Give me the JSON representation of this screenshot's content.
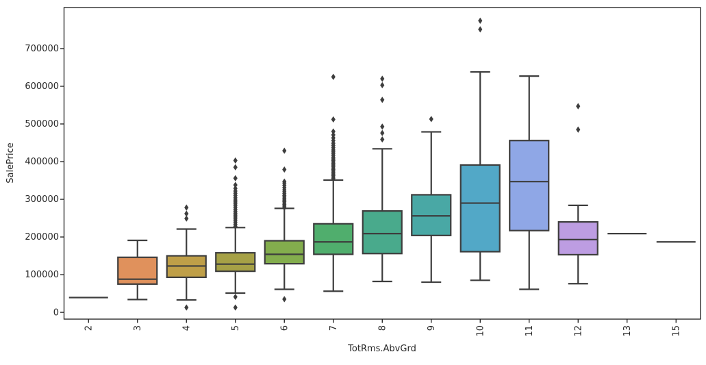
{
  "chart_data": {
    "type": "boxplot",
    "title": "",
    "xlabel": "TotRms.AbvGrd",
    "ylabel": "SalePrice",
    "grid": false,
    "legend": "none",
    "y_ticks": [
      0,
      100000,
      200000,
      300000,
      400000,
      500000,
      600000,
      700000
    ],
    "ylim": [
      -18000,
      809000
    ],
    "x_tick_labels": [
      "2",
      "3",
      "4",
      "5",
      "6",
      "7",
      "8",
      "9",
      "10",
      "11",
      "12",
      "13",
      "15"
    ],
    "colors": {
      "edge": "#3d3d3d",
      "spine": "#1a1a1a",
      "text": "#262626",
      "background": "#ffffff"
    },
    "boxes": [
      {
        "category": "2",
        "single_value": 39300,
        "color": null,
        "fliers": []
      },
      {
        "category": "3",
        "whisker_low": 34000,
        "q1": 75000,
        "median": 88000,
        "q3": 146000,
        "whisker_high": 191000,
        "color": "#e0915c",
        "fliers": []
      },
      {
        "category": "4",
        "whisker_low": 33000,
        "q1": 93000,
        "median": 123000,
        "q3": 150000,
        "whisker_high": 221000,
        "color": "#bf9f48",
        "fliers": [
          12800,
          249000,
          262000,
          278000
        ]
      },
      {
        "category": "5",
        "whisker_low": 51000,
        "q1": 109000,
        "median": 128000,
        "q3": 158000,
        "whisker_high": 225000,
        "color": "#a6a146",
        "fliers": [
          12800,
          41000,
          228000,
          233000,
          238000,
          243000,
          248000,
          253000,
          258000,
          263000,
          268000,
          273000,
          278000,
          283000,
          288000,
          293000,
          298000,
          304000,
          310000,
          316000,
          322000,
          329000,
          338000,
          356000,
          385000,
          403000
        ]
      },
      {
        "category": "6",
        "whisker_low": 61000,
        "q1": 129000,
        "median": 154000,
        "q3": 190000,
        "whisker_high": 276000,
        "color": "#83ad4d",
        "fliers": [
          35000,
          278000,
          282000,
          286000,
          290000,
          294000,
          298000,
          302000,
          306000,
          310000,
          315000,
          320000,
          325000,
          331000,
          337000,
          343000,
          347000,
          379000,
          429000
        ]
      },
      {
        "category": "7",
        "whisker_low": 56000,
        "q1": 154000,
        "median": 187000,
        "q3": 235000,
        "whisker_high": 351000,
        "color": "#50ae6d",
        "fliers": [
          355000,
          359000,
          363000,
          367000,
          371000,
          375000,
          379000,
          383000,
          387000,
          391000,
          395000,
          399000,
          403000,
          407000,
          411000,
          416000,
          421000,
          426000,
          431000,
          437000,
          443000,
          449000,
          456000,
          463000,
          471000,
          480000,
          512000,
          625000
        ]
      },
      {
        "category": "8",
        "whisker_low": 82000,
        "q1": 156000,
        "median": 209000,
        "q3": 269000,
        "whisker_high": 434000,
        "color": "#49aa8c",
        "fliers": [
          459000,
          476000,
          493000,
          564000,
          603000,
          620000
        ]
      },
      {
        "category": "9",
        "whisker_low": 80000,
        "q1": 204000,
        "median": 256000,
        "q3": 312000,
        "whisker_high": 479000,
        "color": "#49a8a5",
        "fliers": [
          513000
        ]
      },
      {
        "category": "10",
        "whisker_low": 85000,
        "q1": 161000,
        "median": 290000,
        "q3": 391000,
        "whisker_high": 638000,
        "color": "#52a8c7",
        "fliers": [
          751000,
          774000
        ]
      },
      {
        "category": "11",
        "whisker_low": 61000,
        "q1": 217000,
        "median": 347000,
        "q3": 456000,
        "whisker_high": 627000,
        "color": "#8fa7e6",
        "fliers": []
      },
      {
        "category": "12",
        "whisker_low": 76000,
        "q1": 153000,
        "median": 193000,
        "q3": 240000,
        "whisker_high": 284000,
        "color": "#bd9de2",
        "fliers": [
          485000,
          547000
        ]
      },
      {
        "category": "13",
        "single_value": 209000,
        "color": null,
        "fliers": []
      },
      {
        "category": "15",
        "single_value": 187000,
        "color": null,
        "fliers": []
      }
    ]
  }
}
